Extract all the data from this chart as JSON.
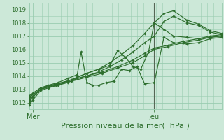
{
  "bg_color": "#cce8d8",
  "grid_color": "#99ccb0",
  "line_color": "#2d6e2d",
  "marker_color": "#2d6e2d",
  "xlabel": "Pression niveau de la mer(  hPa )",
  "ylim": [
    1011.5,
    1019.5
  ],
  "yticks": [
    1012,
    1013,
    1014,
    1015,
    1016,
    1017,
    1018,
    1019
  ],
  "xlim": [
    0.0,
    1.0
  ],
  "xtick_labels": [
    "Mer",
    "Jeu"
  ],
  "xtick_pos": [
    0.02,
    0.65
  ],
  "vline_x": 0.65,
  "xlabel_fontsize": 8,
  "ytick_fontsize": 6,
  "xtick_fontsize": 7,
  "series": [
    {
      "x": [
        0.0,
        0.02,
        0.06,
        0.1,
        0.15,
        0.2,
        0.25,
        0.3,
        0.36,
        0.42,
        0.48,
        0.54,
        0.6,
        0.65,
        0.7,
        0.75,
        0.82,
        0.88,
        0.94,
        1.0
      ],
      "y": [
        1011.8,
        1012.2,
        1012.9,
        1013.1,
        1013.3,
        1013.5,
        1013.8,
        1014.0,
        1014.3,
        1014.7,
        1015.2,
        1015.8,
        1016.5,
        1017.0,
        1018.1,
        1018.5,
        1018.0,
        1017.8,
        1017.3,
        1017.1
      ]
    },
    {
      "x": [
        0.0,
        0.02,
        0.06,
        0.1,
        0.15,
        0.2,
        0.25,
        0.3,
        0.36,
        0.42,
        0.48,
        0.54,
        0.6,
        0.65,
        0.7,
        0.75,
        0.82,
        0.88,
        0.94,
        1.0
      ],
      "y": [
        1012.0,
        1012.4,
        1013.0,
        1013.2,
        1013.4,
        1013.6,
        1013.9,
        1014.2,
        1014.5,
        1015.0,
        1015.6,
        1016.3,
        1017.2,
        1018.0,
        1018.7,
        1018.9,
        1018.2,
        1017.9,
        1017.4,
        1017.2
      ]
    },
    {
      "x": [
        0.0,
        0.02,
        0.06,
        0.1,
        0.15,
        0.2,
        0.25,
        0.3,
        0.36,
        0.42,
        0.46,
        0.5,
        0.54,
        0.58,
        0.62,
        0.65,
        0.7,
        0.75,
        0.82,
        0.88,
        0.94,
        1.0
      ],
      "y": [
        1012.1,
        1012.5,
        1013.0,
        1013.2,
        1013.4,
        1013.6,
        1013.9,
        1014.2,
        1014.5,
        1014.8,
        1015.9,
        1015.4,
        1014.7,
        1014.5,
        1015.8,
        1018.0,
        1017.5,
        1017.0,
        1016.9,
        1016.8,
        1016.9,
        1017.0
      ]
    },
    {
      "x": [
        0.0,
        0.02,
        0.06,
        0.1,
        0.15,
        0.2,
        0.25,
        0.27,
        0.3,
        0.33,
        0.36,
        0.4,
        0.44,
        0.48,
        0.52,
        0.56,
        0.6,
        0.65,
        0.7,
        0.75,
        0.82,
        0.88,
        0.94,
        1.0
      ],
      "y": [
        1012.2,
        1012.7,
        1013.1,
        1013.3,
        1013.5,
        1013.8,
        1014.1,
        1015.8,
        1013.5,
        1013.3,
        1013.3,
        1013.5,
        1013.6,
        1014.5,
        1014.4,
        1014.7,
        1013.4,
        1013.5,
        1016.9,
        1016.5,
        1016.4,
        1016.5,
        1016.8,
        1016.9
      ]
    },
    {
      "x": [
        0.0,
        0.06,
        0.14,
        0.22,
        0.3,
        0.38,
        0.46,
        0.54,
        0.6,
        0.65,
        0.72,
        0.8,
        0.88,
        0.94,
        1.0
      ],
      "y": [
        1012.4,
        1013.0,
        1013.3,
        1013.6,
        1013.9,
        1014.2,
        1014.6,
        1015.0,
        1015.5,
        1016.0,
        1016.2,
        1016.5,
        1016.7,
        1016.9,
        1017.0
      ]
    },
    {
      "x": [
        0.0,
        0.06,
        0.14,
        0.22,
        0.3,
        0.38,
        0.46,
        0.54,
        0.6,
        0.65,
        0.72,
        0.8,
        0.88,
        0.94,
        1.0
      ],
      "y": [
        1012.5,
        1013.1,
        1013.4,
        1013.7,
        1014.0,
        1014.3,
        1014.7,
        1015.2,
        1015.7,
        1016.1,
        1016.3,
        1016.6,
        1016.8,
        1017.0,
        1017.1
      ]
    }
  ]
}
